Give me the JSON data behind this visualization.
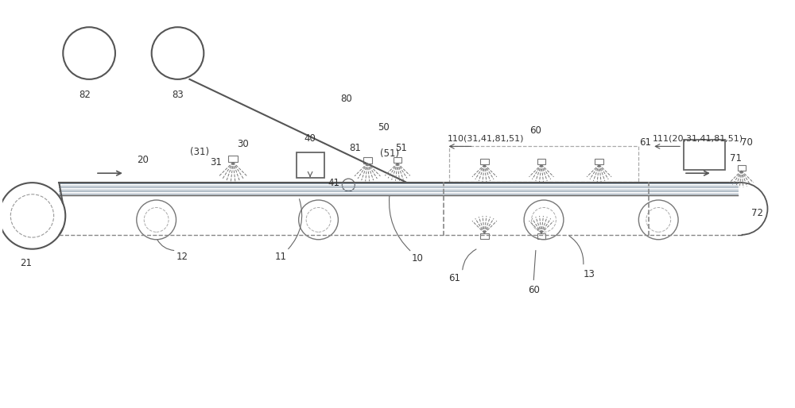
{
  "bg_color": "#FFFFFF",
  "line_color": "#555555",
  "dashed_color": "#888888",
  "text_color": "#333333"
}
